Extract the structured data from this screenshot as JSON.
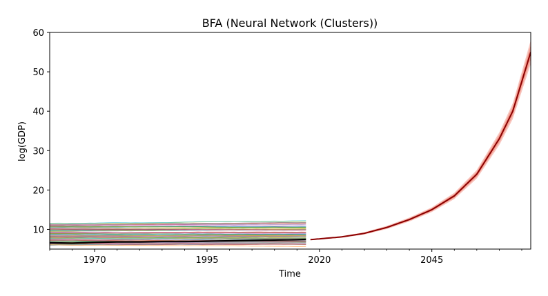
{
  "chart_data": {
    "type": "line",
    "title": "BFA (Neural Network (Clusters))",
    "xlabel": "Time",
    "ylabel": "log(GDP)",
    "xlim": [
      1960,
      2067
    ],
    "ylim": [
      5,
      60
    ],
    "xticks": [
      1970,
      1995,
      2020,
      2045
    ],
    "xtick_labels": [
      "1970",
      "1995",
      "2020",
      "2045"
    ],
    "yticks": [
      10,
      20,
      30,
      40,
      50,
      60
    ],
    "ytick_labels": [
      "10",
      "20",
      "30",
      "40",
      "50",
      "60"
    ],
    "grid": false,
    "history": {
      "description": "many background country series, 1960-2017",
      "x_start": 1960,
      "x_end": 2017,
      "band_low": 6.0,
      "band_high": 11.5,
      "series_count": 60,
      "colors": [
        "#1f77b4",
        "#ff7f0e",
        "#2ca02c",
        "#d62728",
        "#9467bd",
        "#8c564b",
        "#e377c2",
        "#7f7f7f",
        "#bcbd22",
        "#17becf"
      ]
    },
    "target_series": {
      "name": "BFA",
      "color": "#000000",
      "x": [
        1960,
        1965,
        1970,
        1975,
        1980,
        1985,
        1990,
        1995,
        2000,
        2005,
        2010,
        2015,
        2017
      ],
      "y": [
        6.6,
        6.5,
        6.7,
        6.8,
        6.8,
        6.9,
        6.9,
        7.0,
        7.1,
        7.2,
        7.3,
        7.4,
        7.45
      ]
    },
    "forecast": {
      "name": "forecast",
      "color": "#8b0000",
      "band_color": "#f08070",
      "x": [
        2018,
        2020,
        2025,
        2030,
        2035,
        2040,
        2045,
        2050,
        2055,
        2060,
        2063,
        2067
      ],
      "y": [
        7.4,
        7.6,
        8.1,
        9.0,
        10.5,
        12.5,
        15.0,
        18.5,
        24.0,
        33.0,
        40.0,
        55.0
      ],
      "band_half_width": [
        0.1,
        0.15,
        0.2,
        0.3,
        0.4,
        0.5,
        0.6,
        0.8,
        1.1,
        1.6,
        2.0,
        3.0
      ]
    }
  }
}
